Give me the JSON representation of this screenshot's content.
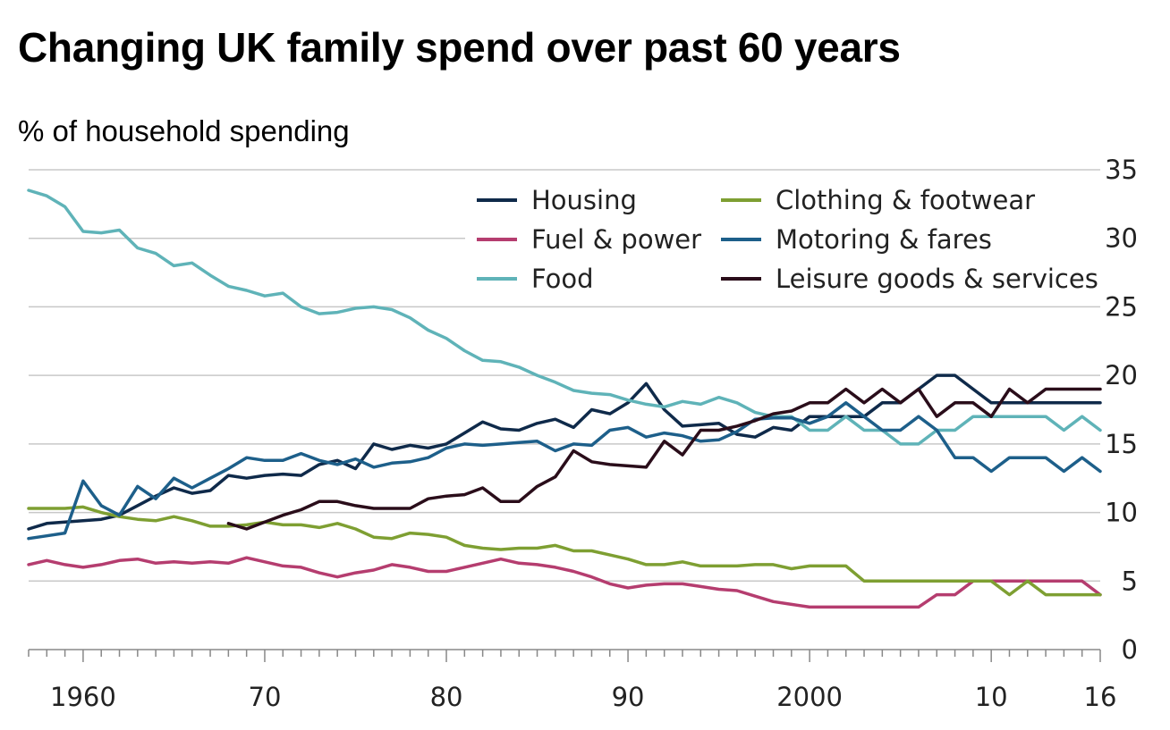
{
  "header": {
    "title": "Changing UK family spend over past 60 years",
    "subtitle": "% of household spending"
  },
  "chart_data": {
    "type": "line",
    "title": "Changing UK family spend over past 60 years",
    "ylabel": "% of household spending",
    "xlabel": "",
    "xlim": [
      1957,
      2016
    ],
    "ylim": [
      0,
      35
    ],
    "y_ticks": [
      0,
      5,
      10,
      15,
      20,
      25,
      30,
      35
    ],
    "x_ticks": [
      {
        "value": 1960,
        "label": "1960"
      },
      {
        "value": 1970,
        "label": "70"
      },
      {
        "value": 1980,
        "label": "80"
      },
      {
        "value": 1990,
        "label": "90"
      },
      {
        "value": 2000,
        "label": "2000"
      },
      {
        "value": 2010,
        "label": "10"
      },
      {
        "value": 2016,
        "label": "16"
      }
    ],
    "grid": "horizontal",
    "legend_position": "top-right",
    "series": [
      {
        "name": "Housing",
        "color": "#0f2a4a",
        "x": [
          1957,
          1958,
          1959,
          1960,
          1961,
          1962,
          1963,
          1964,
          1965,
          1966,
          1967,
          1968,
          1969,
          1970,
          1971,
          1972,
          1973,
          1974,
          1975,
          1976,
          1977,
          1978,
          1979,
          1980,
          1981,
          1982,
          1983,
          1984,
          1985,
          1986,
          1987,
          1988,
          1989,
          1990,
          1991,
          1992,
          1993,
          1994,
          1995,
          1996,
          1997,
          1998,
          1999,
          2000,
          2001,
          2002,
          2003,
          2004,
          2005,
          2006,
          2007,
          2008,
          2009,
          2010,
          2011,
          2012,
          2013,
          2014,
          2015,
          2016
        ],
        "values": [
          8.8,
          9.2,
          9.3,
          9.4,
          9.5,
          9.8,
          10.5,
          11.2,
          11.8,
          11.4,
          11.6,
          12.7,
          12.5,
          12.7,
          12.8,
          12.7,
          13.5,
          13.8,
          13.2,
          15.0,
          14.6,
          14.9,
          14.7,
          15.0,
          15.8,
          16.6,
          16.1,
          16.0,
          16.5,
          16.8,
          16.2,
          17.5,
          17.2,
          18.0,
          19.4,
          17.5,
          16.3,
          16.4,
          16.5,
          15.7,
          15.5,
          16.2,
          16.0,
          17.0,
          17.0,
          17.0,
          17.0,
          18.0,
          18.0,
          19.0,
          20.0,
          20.0,
          19.0,
          18.0,
          18.0,
          18.0,
          18.0,
          18.0,
          18.0,
          18.0
        ]
      },
      {
        "name": "Fuel & power",
        "color": "#b53d6f",
        "x": [
          1957,
          1958,
          1959,
          1960,
          1961,
          1962,
          1963,
          1964,
          1965,
          1966,
          1967,
          1968,
          1969,
          1970,
          1971,
          1972,
          1973,
          1974,
          1975,
          1976,
          1977,
          1978,
          1979,
          1980,
          1981,
          1982,
          1983,
          1984,
          1985,
          1986,
          1987,
          1988,
          1989,
          1990,
          1991,
          1992,
          1993,
          1994,
          1995,
          1996,
          1997,
          1998,
          1999,
          2000,
          2001,
          2002,
          2003,
          2004,
          2005,
          2006,
          2007,
          2008,
          2009,
          2010,
          2011,
          2012,
          2013,
          2014,
          2015,
          2016
        ],
        "values": [
          6.2,
          6.5,
          6.2,
          6.0,
          6.2,
          6.5,
          6.6,
          6.3,
          6.4,
          6.3,
          6.4,
          6.3,
          6.7,
          6.4,
          6.1,
          6.0,
          5.6,
          5.3,
          5.6,
          5.8,
          6.2,
          6.0,
          5.7,
          5.7,
          6.0,
          6.3,
          6.6,
          6.3,
          6.2,
          6.0,
          5.7,
          5.3,
          4.8,
          4.5,
          4.7,
          4.8,
          4.8,
          4.6,
          4.4,
          4.3,
          3.9,
          3.5,
          3.3,
          3.1,
          3.1,
          3.1,
          3.1,
          3.1,
          3.1,
          3.1,
          4.0,
          4.0,
          5.0,
          5.0,
          5.0,
          5.0,
          5.0,
          5.0,
          5.0,
          4.0
        ]
      },
      {
        "name": "Food",
        "color": "#5fb3b8",
        "x": [
          1957,
          1958,
          1959,
          1960,
          1961,
          1962,
          1963,
          1964,
          1965,
          1966,
          1967,
          1968,
          1969,
          1970,
          1971,
          1972,
          1973,
          1974,
          1975,
          1976,
          1977,
          1978,
          1979,
          1980,
          1981,
          1982,
          1983,
          1984,
          1985,
          1986,
          1987,
          1988,
          1989,
          1990,
          1991,
          1992,
          1993,
          1994,
          1995,
          1996,
          1997,
          1998,
          1999,
          2000,
          2001,
          2002,
          2003,
          2004,
          2005,
          2006,
          2007,
          2008,
          2009,
          2010,
          2011,
          2012,
          2013,
          2014,
          2015,
          2016
        ],
        "values": [
          33.5,
          33.1,
          32.3,
          30.5,
          30.4,
          30.6,
          29.3,
          28.9,
          28.0,
          28.2,
          27.3,
          26.5,
          26.2,
          25.8,
          26.0,
          25.0,
          24.5,
          24.6,
          24.9,
          25.0,
          24.8,
          24.2,
          23.3,
          22.7,
          21.8,
          21.1,
          21.0,
          20.6,
          20.0,
          19.5,
          18.9,
          18.7,
          18.6,
          18.2,
          17.9,
          17.7,
          18.1,
          17.9,
          18.4,
          18.0,
          17.3,
          17.0,
          17.0,
          16.0,
          16.0,
          17.0,
          16.0,
          16.0,
          15.0,
          15.0,
          16.0,
          16.0,
          17.0,
          17.0,
          17.0,
          17.0,
          17.0,
          16.0,
          17.0,
          16.0
        ]
      },
      {
        "name": "Clothing & footwear",
        "color": "#7e9f32",
        "x": [
          1957,
          1958,
          1959,
          1960,
          1961,
          1962,
          1963,
          1964,
          1965,
          1966,
          1967,
          1968,
          1969,
          1970,
          1971,
          1972,
          1973,
          1974,
          1975,
          1976,
          1977,
          1978,
          1979,
          1980,
          1981,
          1982,
          1983,
          1984,
          1985,
          1986,
          1987,
          1988,
          1989,
          1990,
          1991,
          1992,
          1993,
          1994,
          1995,
          1996,
          1997,
          1998,
          1999,
          2000,
          2001,
          2002,
          2003,
          2004,
          2005,
          2006,
          2007,
          2008,
          2009,
          2010,
          2011,
          2012,
          2013,
          2014,
          2015,
          2016
        ],
        "values": [
          10.3,
          10.3,
          10.3,
          10.4,
          10.0,
          9.7,
          9.5,
          9.4,
          9.7,
          9.4,
          9.0,
          9.0,
          9.1,
          9.3,
          9.1,
          9.1,
          8.9,
          9.2,
          8.8,
          8.2,
          8.1,
          8.5,
          8.4,
          8.2,
          7.6,
          7.4,
          7.3,
          7.4,
          7.4,
          7.6,
          7.2,
          7.2,
          6.9,
          6.6,
          6.2,
          6.2,
          6.4,
          6.1,
          6.1,
          6.1,
          6.2,
          6.2,
          5.9,
          6.1,
          6.1,
          6.1,
          5.0,
          5.0,
          5.0,
          5.0,
          5.0,
          5.0,
          5.0,
          5.0,
          4.0,
          5.0,
          4.0,
          4.0,
          4.0,
          4.0
        ]
      },
      {
        "name": "Motoring & fares",
        "color": "#1d5f8a",
        "x": [
          1957,
          1958,
          1959,
          1960,
          1961,
          1962,
          1963,
          1964,
          1965,
          1966,
          1967,
          1968,
          1969,
          1970,
          1971,
          1972,
          1973,
          1974,
          1975,
          1976,
          1977,
          1978,
          1979,
          1980,
          1981,
          1982,
          1983,
          1984,
          1985,
          1986,
          1987,
          1988,
          1989,
          1990,
          1991,
          1992,
          1993,
          1994,
          1995,
          1996,
          1997,
          1998,
          1999,
          2000,
          2001,
          2002,
          2003,
          2004,
          2005,
          2006,
          2007,
          2008,
          2009,
          2010,
          2011,
          2012,
          2013,
          2014,
          2015,
          2016
        ],
        "values": [
          8.1,
          8.3,
          8.5,
          12.3,
          10.5,
          9.8,
          11.9,
          11.0,
          12.5,
          11.8,
          12.5,
          13.2,
          14.0,
          13.8,
          13.8,
          14.3,
          13.8,
          13.5,
          13.9,
          13.3,
          13.6,
          13.7,
          14.0,
          14.7,
          15.0,
          14.9,
          15.0,
          15.1,
          15.2,
          14.5,
          15.0,
          14.9,
          16.0,
          16.2,
          15.5,
          15.8,
          15.6,
          15.2,
          15.3,
          15.9,
          16.8,
          16.9,
          16.9,
          16.5,
          17.0,
          18.0,
          17.0,
          16.0,
          16.0,
          17.0,
          16.0,
          14.0,
          14.0,
          13.0,
          14.0,
          14.0,
          14.0,
          13.0,
          14.0,
          13.0
        ]
      },
      {
        "name": "Leisure goods & services",
        "color": "#2a0d1a",
        "x": [
          1968,
          1969,
          1970,
          1971,
          1972,
          1973,
          1974,
          1975,
          1976,
          1977,
          1978,
          1979,
          1980,
          1981,
          1982,
          1983,
          1984,
          1985,
          1986,
          1987,
          1988,
          1989,
          1990,
          1991,
          1992,
          1993,
          1994,
          1995,
          1996,
          1997,
          1998,
          1999,
          2000,
          2001,
          2002,
          2003,
          2004,
          2005,
          2006,
          2007,
          2008,
          2009,
          2010,
          2011,
          2012,
          2013,
          2014,
          2015,
          2016
        ],
        "values": [
          9.2,
          8.8,
          9.3,
          9.8,
          10.2,
          10.8,
          10.8,
          10.5,
          10.3,
          10.3,
          10.3,
          11.0,
          11.2,
          11.3,
          11.8,
          10.8,
          10.8,
          11.9,
          12.6,
          14.5,
          13.7,
          13.5,
          13.4,
          13.3,
          15.2,
          14.2,
          16.0,
          16.0,
          16.3,
          16.7,
          17.2,
          17.4,
          18.0,
          18.0,
          19.0,
          18.0,
          19.0,
          18.0,
          19.0,
          17.0,
          18.0,
          18.0,
          17.0,
          19.0,
          18.0,
          19.0,
          19.0,
          19.0,
          19.0
        ]
      }
    ]
  }
}
